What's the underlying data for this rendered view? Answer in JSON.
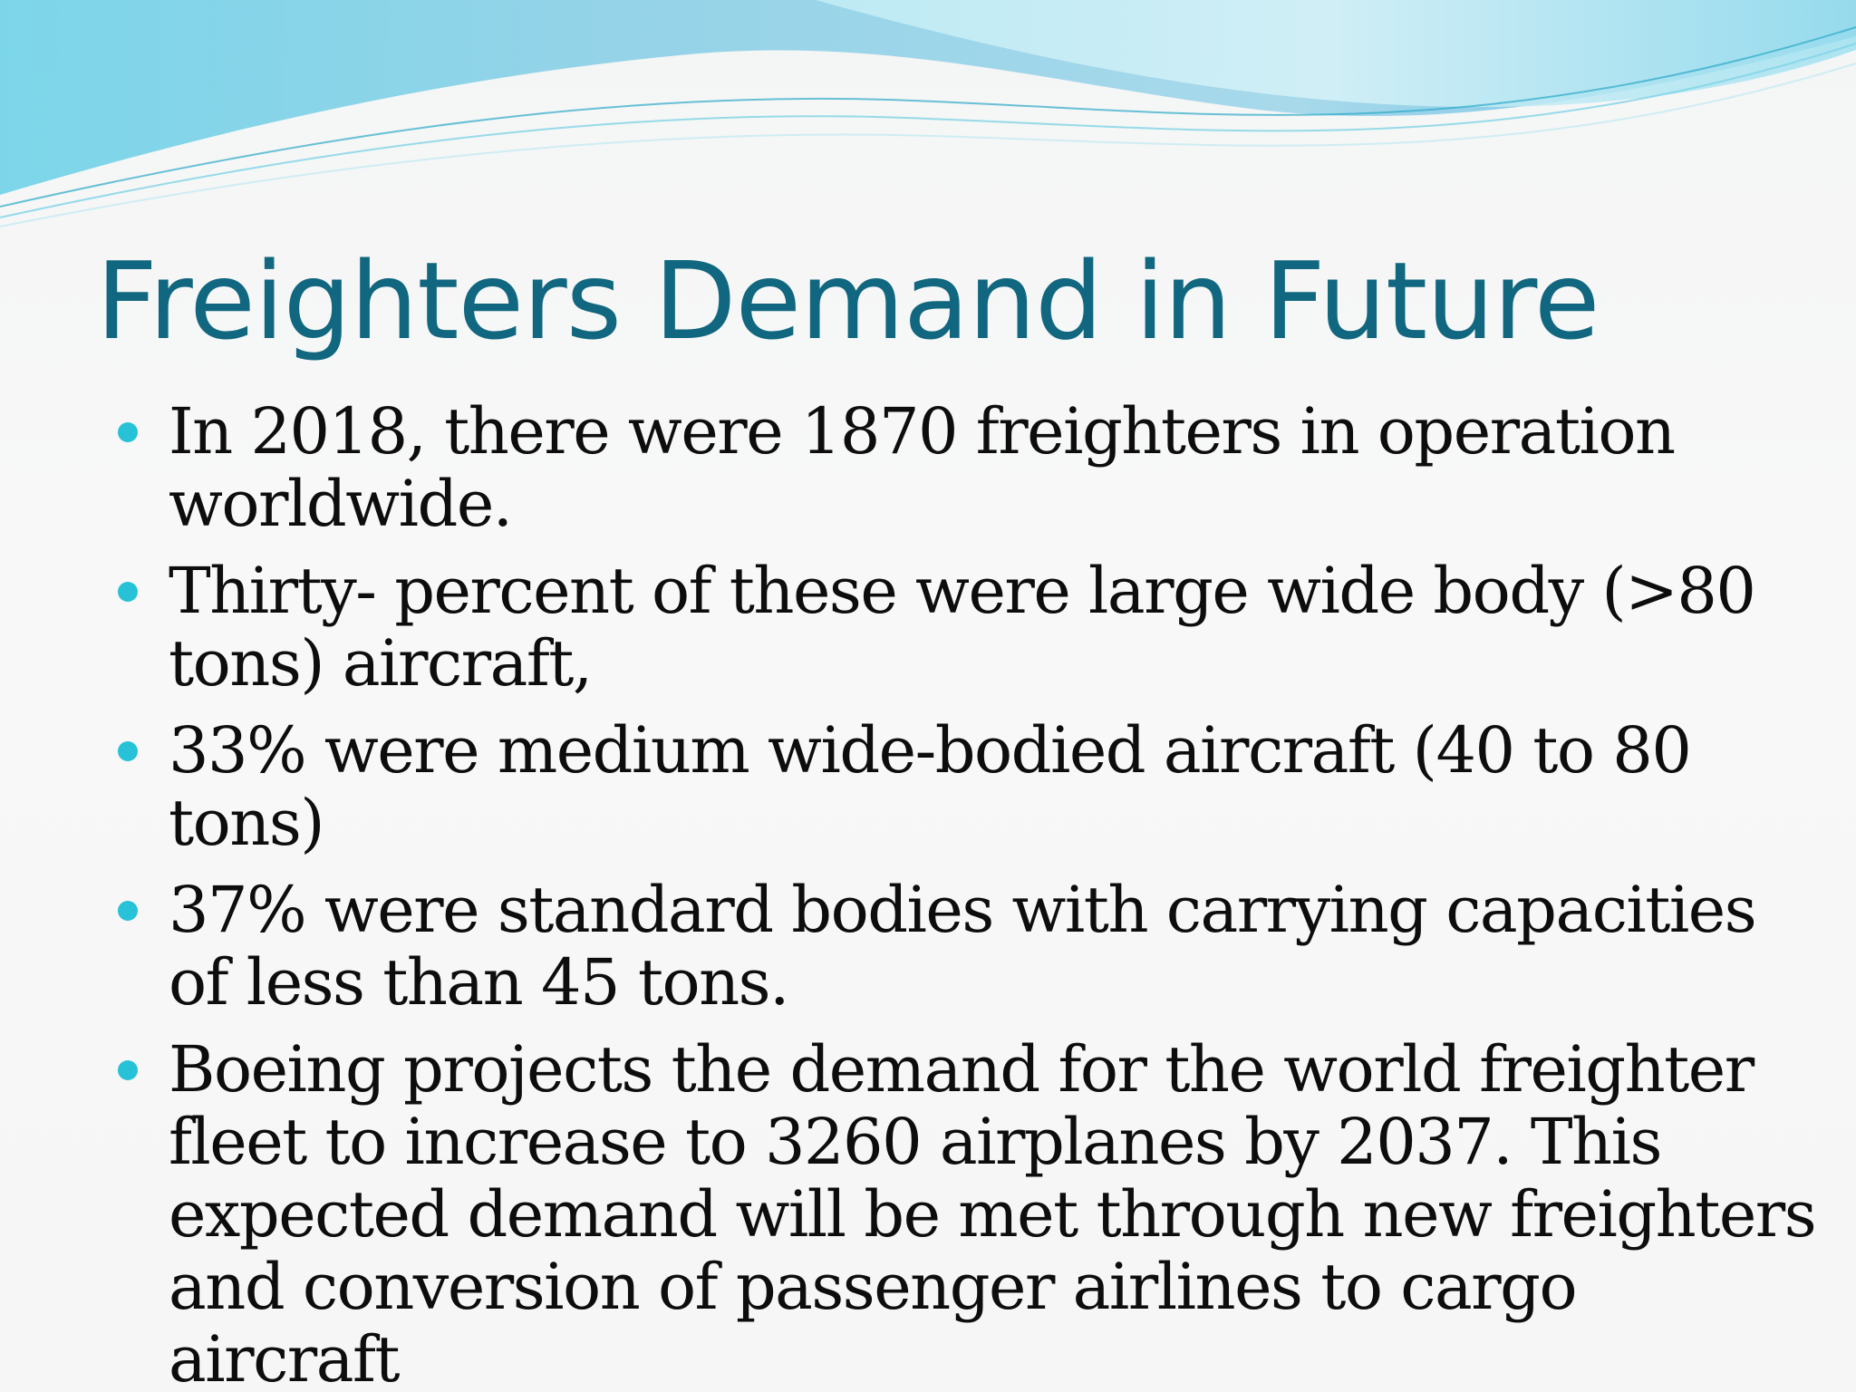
{
  "slide": {
    "title": "Freighters Demand in Future",
    "bullets": [
      "In 2018, there were 1870 freighters in operation worldwide.",
      "Thirty- percent of these were large wide body (>80 tons) aircraft,",
      "33% were medium wide-bodied aircraft (40 to 80 tons)",
      "37% were standard bodies with carrying capacities of less than 45 tons.",
      "Boeing projects the demand for the world freighter fleet to increase to 3260 airplanes by 2037. This expected demand will be met through new freighters and conversion of passenger airlines to cargo aircraft"
    ]
  },
  "colors": {
    "title": "#11677f",
    "bullet_dot": "#27c2d8",
    "wave_light": "#b6e6f2",
    "wave_dark": "#4bb8dc"
  }
}
